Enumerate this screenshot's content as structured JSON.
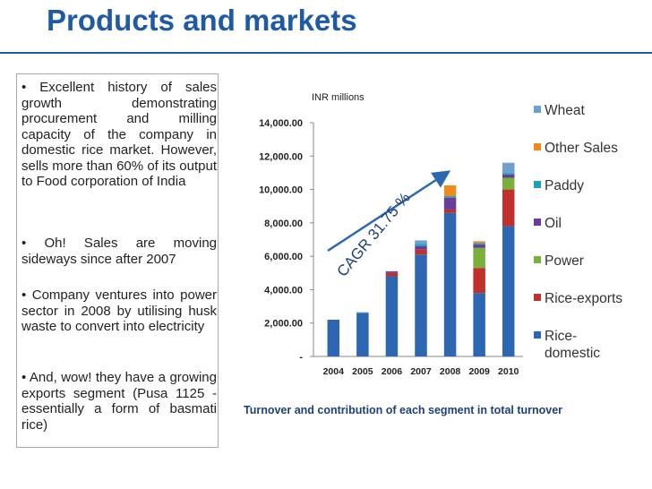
{
  "slide": {
    "title": "Products and markets",
    "bullets": [
      "• Excellent history of sales growth demonstrating procurement and milling capacity of the company in domestic rice market. However, sells more than 60% of its output to Food corporation of India",
      "• Oh! Sales are moving sideways since after 2007",
      "• Company ventures into power sector in 2008 by utilising husk waste to convert into electricity",
      "• And, wow! they have a growing exports segment (Pusa 1125 - essentially a form of basmati rice)"
    ]
  },
  "colors": {
    "title": "#1f5aa6",
    "caption": "#1f3f7a",
    "Rice-domestic": "#2e67b1",
    "Rice-exports": "#c0302c",
    "Power": "#7ab03a",
    "Oil": "#6a3d99",
    "Paddy": "#1fa0bb",
    "Other Sales": "#f08a1c",
    "Wheat": "#6f9fd0"
  },
  "chart_data": {
    "type": "bar",
    "stacked": true,
    "unit_label": "INR millions",
    "categories": [
      "2004",
      "2005",
      "2006",
      "2007",
      "2008",
      "2009",
      "2010"
    ],
    "ylim": [
      0,
      14000
    ],
    "yticks": [
      "-",
      "2,000.00",
      "4,000.00",
      "6,000.00",
      "8,000.00",
      "10,000.00",
      "12,000.00",
      "14,000.00"
    ],
    "ytick_values": [
      0,
      2000,
      4000,
      6000,
      8000,
      10000,
      12000,
      14000
    ],
    "series": [
      {
        "name": "Rice-domestic",
        "values": [
          2200,
          2600,
          4800,
          6100,
          8600,
          3800,
          7800
        ]
      },
      {
        "name": "Rice-exports",
        "values": [
          0,
          0,
          200,
          300,
          200,
          1500,
          2200
        ]
      },
      {
        "name": "Power",
        "values": [
          0,
          0,
          0,
          0,
          0,
          1200,
          700
        ]
      },
      {
        "name": "Oil",
        "values": [
          0,
          0,
          100,
          200,
          700,
          200,
          200
        ]
      },
      {
        "name": "Paddy",
        "values": [
          0,
          0,
          0,
          150,
          100,
          100,
          100
        ]
      },
      {
        "name": "Other Sales",
        "values": [
          0,
          0,
          0,
          0,
          650,
          100,
          0
        ]
      },
      {
        "name": "Wheat",
        "values": [
          0,
          50,
          0,
          200,
          0,
          0,
          600
        ]
      }
    ],
    "legend_order": [
      "Wheat",
      "Other Sales",
      "Paddy",
      "Oil",
      "Power",
      "Rice-exports",
      "Rice-domestic"
    ],
    "legend_position": "right",
    "annotation": "CAGR 31.75 %",
    "caption": "Turnover and contribution of each segment in total turnover"
  }
}
